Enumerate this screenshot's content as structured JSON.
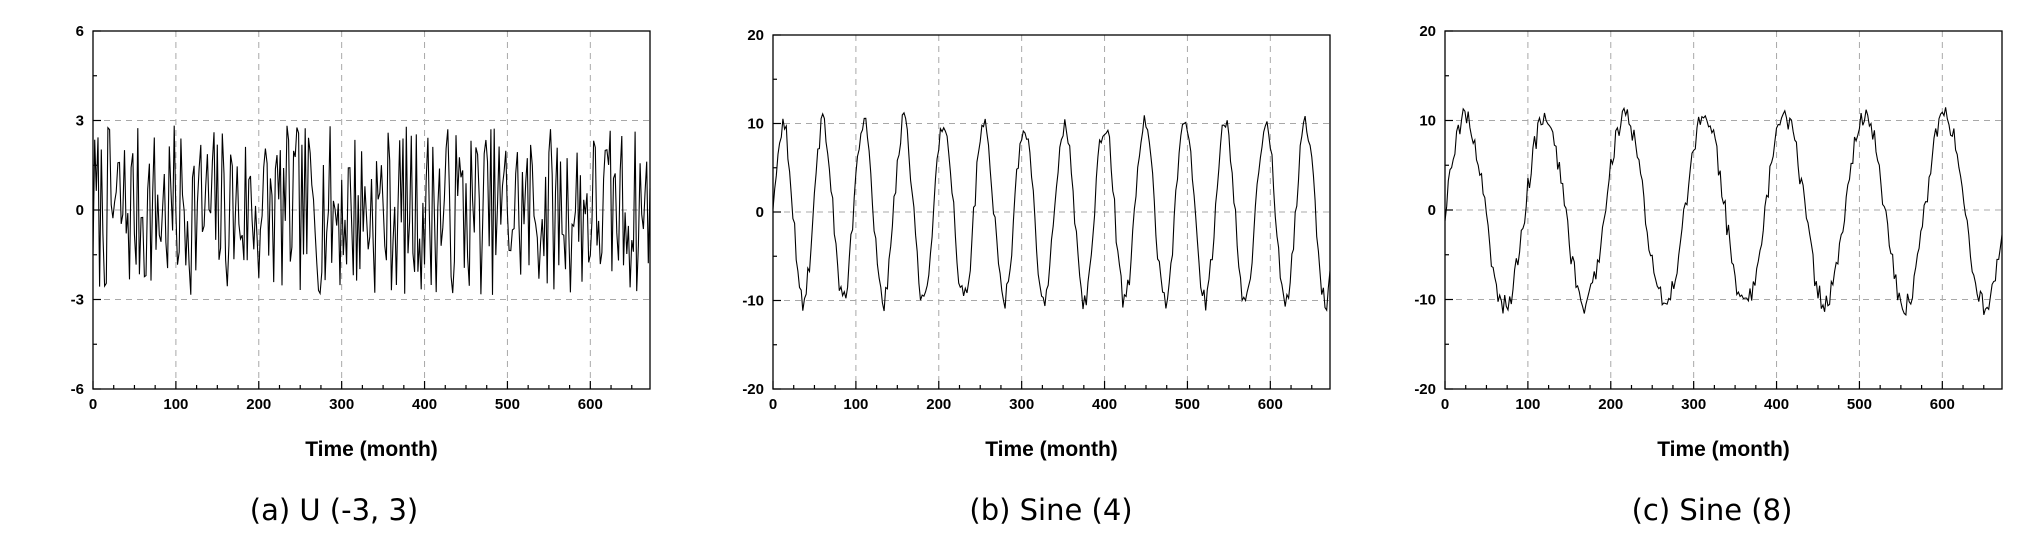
{
  "chart_data": [
    {
      "type": "line",
      "caption": "(a) U (-3, 3)",
      "xlabel": "Time (month)",
      "ylabel": "",
      "xlim": [
        0,
        672
      ],
      "ylim": [
        -6,
        6
      ],
      "xticks": [
        0,
        100,
        200,
        300,
        400,
        500,
        600
      ],
      "yticks": [
        -6,
        -3,
        0,
        3,
        6
      ],
      "grid": true,
      "series": [
        {
          "generator": "uniform_noise",
          "params": {
            "low": -3,
            "high": 3,
            "amplitude": 0.95,
            "step": 2
          },
          "x": [
            0,
            672
          ]
        }
      ]
    },
    {
      "type": "line",
      "caption": "(b) Sine (4)",
      "xlabel": "Time (month)",
      "ylabel": "",
      "xlim": [
        0,
        672
      ],
      "ylim": [
        -20,
        20
      ],
      "xticks": [
        0,
        100,
        200,
        300,
        400,
        500,
        600
      ],
      "yticks": [
        -20,
        -10,
        0,
        10,
        20
      ],
      "grid": true,
      "series": [
        {
          "generator": "noisy_sine",
          "params": {
            "amplitude": 10,
            "period": 48.5,
            "noise": 0.8,
            "step": 2
          },
          "x": [
            0,
            672
          ]
        }
      ]
    },
    {
      "type": "line",
      "caption": "(c) Sine (8)",
      "xlabel": "Time (month)",
      "ylabel": "",
      "xlim": [
        0,
        672
      ],
      "ylim": [
        -20,
        20
      ],
      "xticks": [
        0,
        100,
        200,
        300,
        400,
        500,
        600
      ],
      "yticks": [
        -20,
        -10,
        0,
        10,
        20
      ],
      "grid": true,
      "series": [
        {
          "generator": "noisy_sine",
          "params": {
            "amplitude": 10.5,
            "period": 96.5,
            "noise": 0.8,
            "step": 2
          },
          "x": [
            0,
            672
          ]
        }
      ]
    }
  ]
}
